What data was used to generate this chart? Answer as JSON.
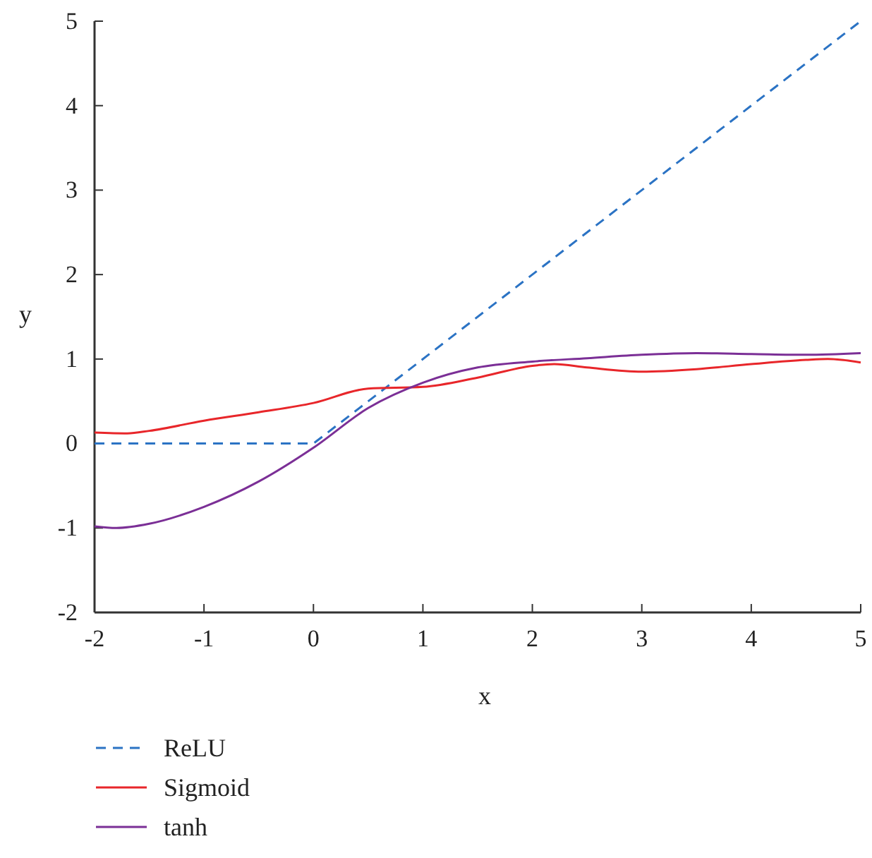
{
  "chart_data": {
    "type": "line",
    "xlabel": "x",
    "ylabel": "y",
    "xlim": [
      -2,
      5
    ],
    "ylim": [
      -2,
      5
    ],
    "xticks": [
      -2,
      -1,
      0,
      1,
      2,
      3,
      4,
      5
    ],
    "yticks": [
      -2,
      -1,
      0,
      1,
      2,
      3,
      4,
      5
    ],
    "grid": false,
    "legend": "bottom left",
    "marker": "none",
    "series": [
      {
        "name": "ReLU",
        "color": "#2b73c4",
        "line_style": "dashed",
        "x": [
          -2,
          0,
          5
        ],
        "values": [
          0,
          0,
          5
        ]
      },
      {
        "name": "Sigmoid",
        "color": "#e8262a",
        "line_style": "solid",
        "x": [
          -2,
          -1.7,
          -1.5,
          -1,
          -0.5,
          0,
          0.5,
          1,
          1.5,
          2,
          2.2,
          2.5,
          3,
          3.5,
          4,
          4.5,
          4.7,
          5
        ],
        "values": [
          0.13,
          0.12,
          0.15,
          0.27,
          0.37,
          0.48,
          0.65,
          0.67,
          0.78,
          0.92,
          0.94,
          0.9,
          0.85,
          0.88,
          0.94,
          0.99,
          1.0,
          0.96
        ]
      },
      {
        "name": "tanh",
        "color": "#7b2f96",
        "line_style": "solid",
        "x": [
          -2,
          -1.8,
          -1.5,
          -1,
          -0.5,
          0,
          0.5,
          1,
          1.5,
          2,
          2.5,
          3,
          3.5,
          4,
          4.5,
          5
        ],
        "values": [
          -0.98,
          -1.0,
          -0.95,
          -0.75,
          -0.45,
          -0.05,
          0.42,
          0.72,
          0.9,
          0.97,
          1.01,
          1.05,
          1.07,
          1.06,
          1.05,
          1.07
        ]
      }
    ]
  }
}
